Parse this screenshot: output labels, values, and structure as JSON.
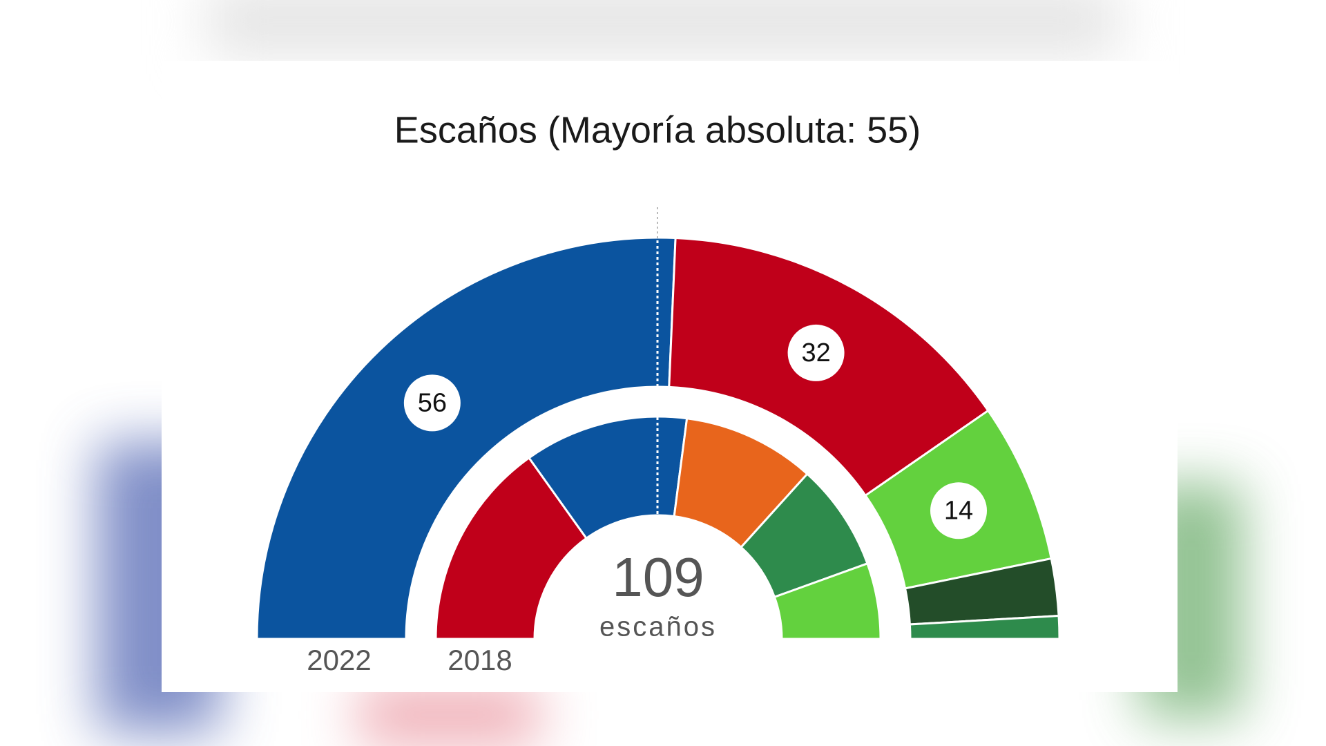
{
  "chart_data": {
    "type": "parliament",
    "title": "Escaños (Mayoría absoluta: 55)",
    "total": 109,
    "total_label": "escaños",
    "series": [
      {
        "name": "2022",
        "values": [
          56,
          32,
          14,
          5,
          2
        ],
        "colors": [
          "#0b549f",
          "#c0001a",
          "#63d13e",
          "#234d29",
          "#2e8b4c"
        ],
        "labeled": [
          true,
          true,
          true,
          false,
          false
        ]
      },
      {
        "name": "2018",
        "values": [
          33,
          26,
          21,
          17,
          12
        ],
        "colors": [
          "#c0001a",
          "#0b549f",
          "#e8651c",
          "#2e8b4c",
          "#63d13e"
        ],
        "labeled": [
          false,
          false,
          false,
          false,
          false
        ]
      }
    ]
  }
}
